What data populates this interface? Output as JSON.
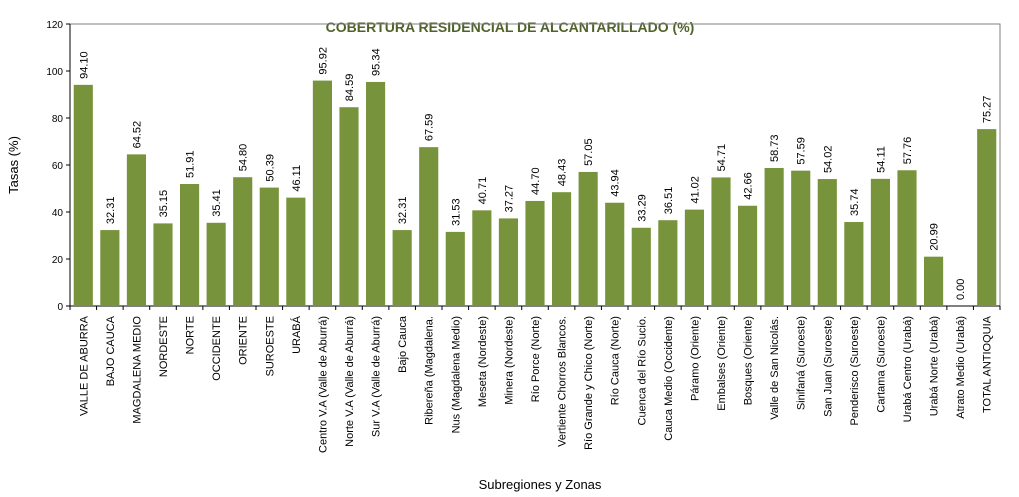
{
  "chart_data": {
    "type": "bar",
    "title": "COBERTURA RESIDENCIAL DE ALCANTARILLADO (%)",
    "xlabel": "Subregiones y Zonas",
    "ylabel": "Tasas (%)",
    "ylim": [
      0,
      120
    ],
    "yticks": [
      "0",
      "20",
      "40",
      "60",
      "80",
      "100",
      "120"
    ],
    "grid": false,
    "legend": "none",
    "colors": {
      "bar": "#77933C",
      "title": "#4F6228",
      "axis": "#000000",
      "plot_border": "#808080"
    },
    "categories": [
      "VALLE DE ABURRA",
      "BAJO CAUCA",
      "MAGDALENA MEDIO",
      "NORDESTE",
      "NORTE",
      "OCCIDENTE",
      "ORIENTE",
      "SUROESTE",
      "URABÁ",
      "Centro V.A (Valle de Aburrá)",
      "Norte V.A (Valle de Aburrá)",
      "Sur V.A (Valle de Aburrá)",
      "Bajo Cauca",
      "Ribereña (Magdalena.",
      "Nus (Magdalena Medio)",
      "Meseta (Nordeste)",
      "Minera (Nordeste)",
      "Río Porce (Norte)",
      "Vertiente Chorros Blancos.",
      "Río Grande y Chico (Norte)",
      "Río Cauca (Norte)",
      "Cuenca del Río Sucio.",
      "Cauca Medio (Occidente)",
      "Páramo (Oriente)",
      "Embalses (Oriente)",
      "Bosques (Oriente)",
      "Valle de San Nicolás.",
      "Sinifaná (Suroeste)",
      "San Juan (Suroeste)",
      "Penderisco (Suroeste)",
      "Cartama (Suroeste)",
      "Urabá Centro (Urabá)",
      "Urabá Norte (Urabá)",
      "Atrato Medio (Urabá)",
      "TOTAL ANTIOQUIA"
    ],
    "values": [
      94.1,
      32.31,
      64.52,
      35.15,
      51.91,
      35.41,
      54.8,
      50.39,
      46.11,
      95.92,
      84.59,
      95.34,
      32.31,
      67.59,
      31.53,
      40.71,
      37.27,
      44.7,
      48.43,
      57.05,
      43.94,
      33.29,
      36.51,
      41.02,
      54.71,
      42.66,
      58.73,
      57.59,
      54.02,
      35.74,
      54.11,
      57.76,
      20.99,
      0.0,
      75.27
    ],
    "data_labels": [
      "94.10",
      "32.31",
      "64.52",
      "35.15",
      "51.91",
      "35.41",
      "54.80",
      "50.39",
      "46.11",
      "95.92",
      "84.59",
      "95.34",
      "32.31",
      "67.59",
      "31.53",
      "40.71",
      "37.27",
      "44.70",
      "48.43",
      "57.05",
      "43.94",
      "33.29",
      "36.51",
      "41.02",
      "54.71",
      "42.66",
      "58.73",
      "57.59",
      "54.02",
      "35.74",
      "54.11",
      "57.76",
      "20.99",
      "0.00",
      "75.27"
    ]
  }
}
